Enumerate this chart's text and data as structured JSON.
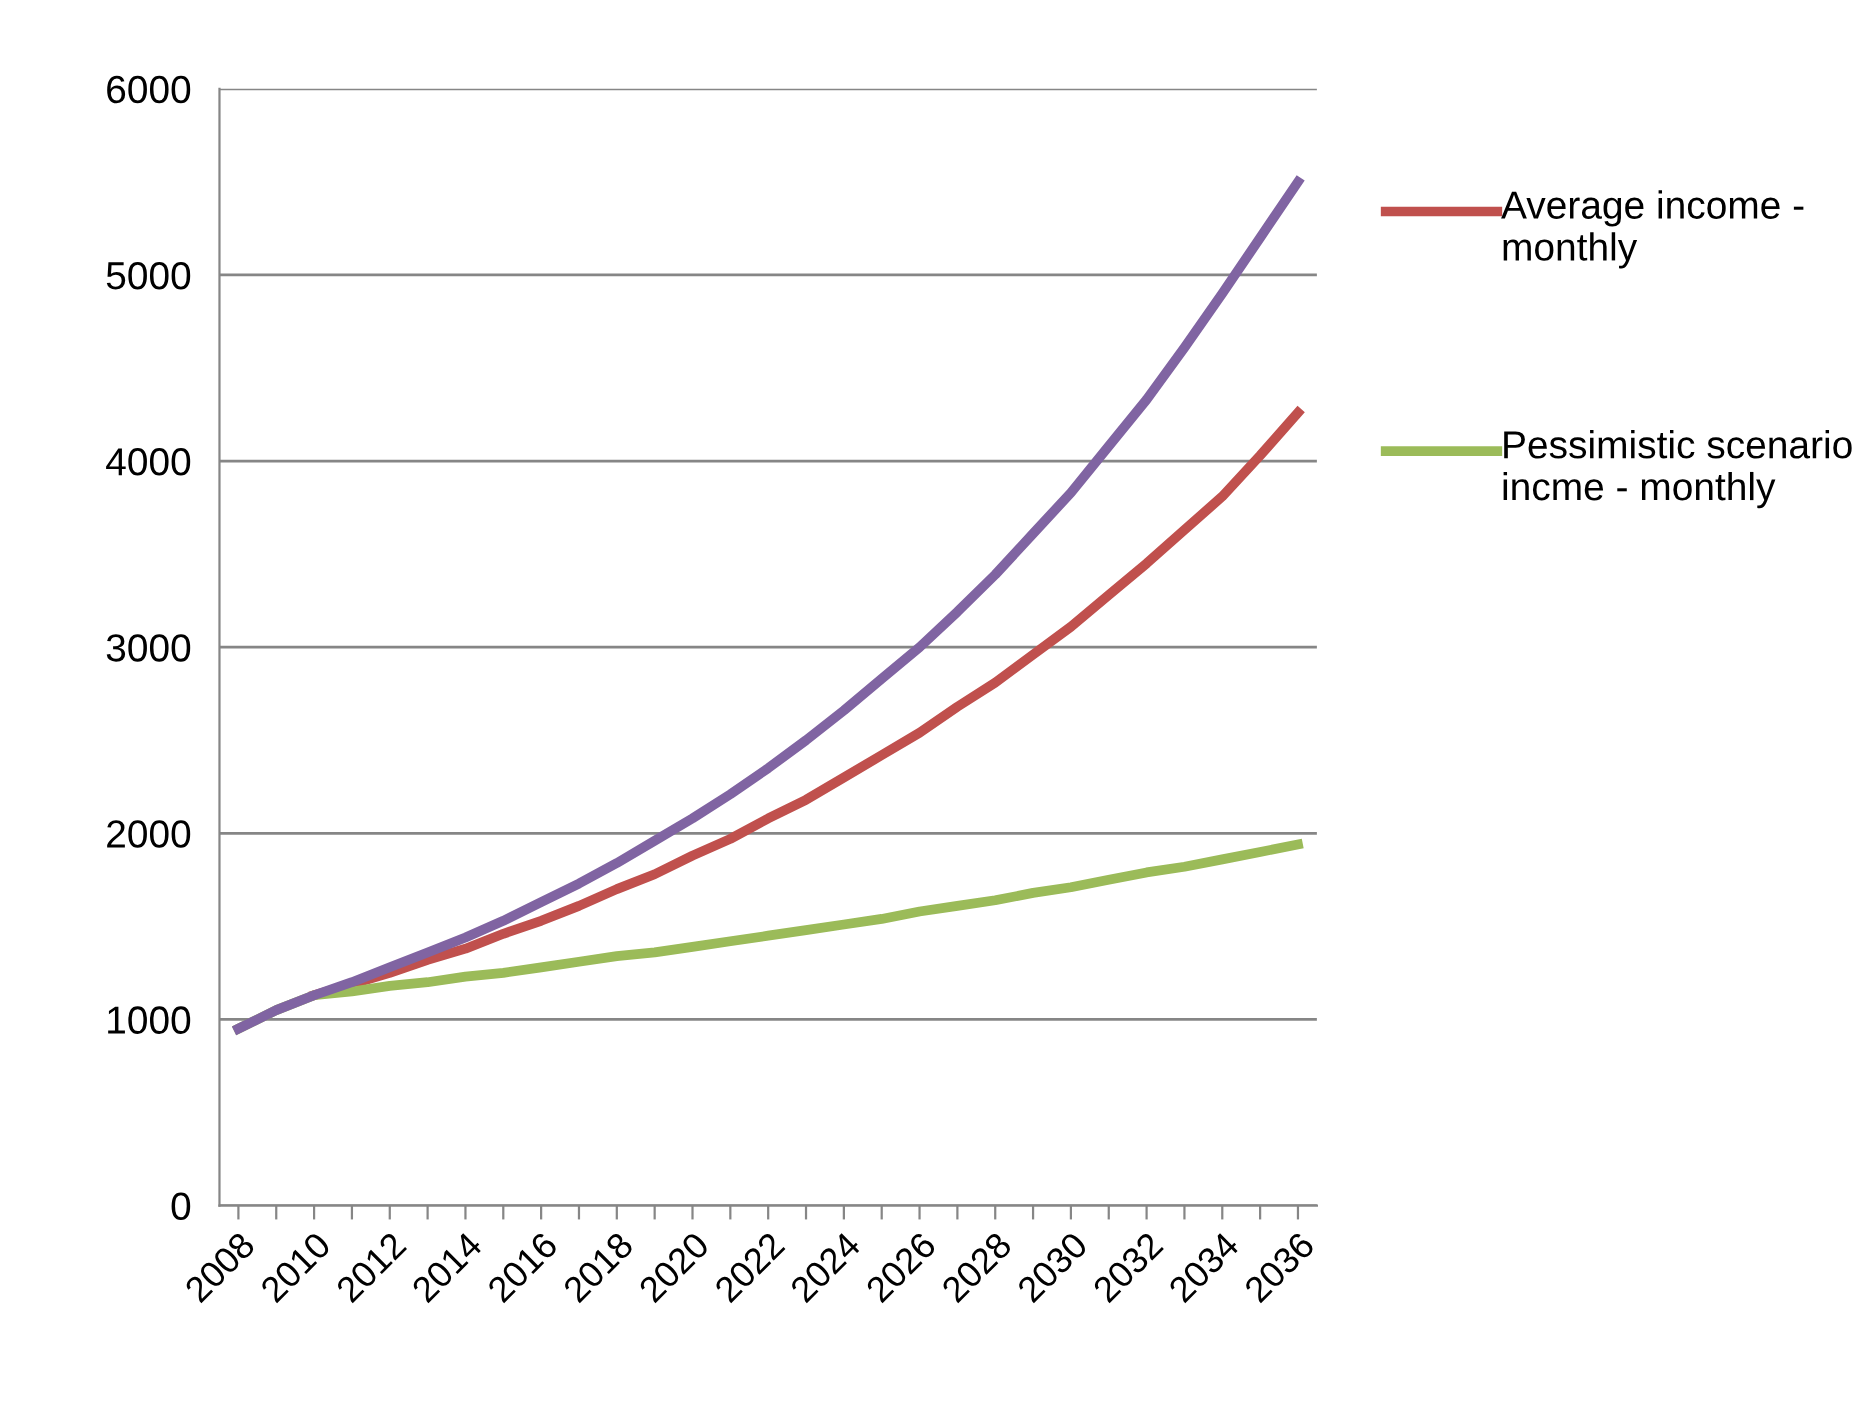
{
  "chart_data": {
    "type": "line",
    "categories": [
      "2008",
      null,
      "2010",
      null,
      "2012",
      null,
      "2014",
      null,
      "2016",
      null,
      "2018",
      null,
      "2020",
      null,
      "2022",
      null,
      "2024",
      null,
      "2026",
      null,
      "2028",
      null,
      "2030",
      null,
      "2032",
      null,
      "2034",
      null,
      "2036"
    ],
    "series": [
      {
        "name": "Average income - monthly",
        "color": "#c0504d",
        "values": [
          null,
          null,
          1130,
          1190,
          1250,
          1320,
          1380,
          1460,
          1530,
          1610,
          1700,
          1780,
          1880,
          1970,
          2080,
          2180,
          2300,
          2420,
          2540,
          2680,
          2810,
          2960,
          3110,
          3280,
          3450,
          3630,
          3810,
          4030,
          4260
        ]
      },
      {
        "name": "Pessimistic scenario incme - monthly",
        "color": "#9bbb59",
        "values": [
          950,
          1050,
          1130,
          1150,
          1180,
          1200,
          1230,
          1250,
          1280,
          1310,
          1340,
          1360,
          1390,
          1420,
          1450,
          1480,
          1510,
          1540,
          1580,
          1610,
          1640,
          1680,
          1710,
          1750,
          1790,
          1820,
          1860,
          1900,
          1940
        ]
      },
      {
        "color": "#8064a2",
        "values": [
          950,
          1050,
          1130,
          1200,
          1280,
          1360,
          1440,
          1530,
          1630,
          1730,
          1840,
          1960,
          2080,
          2210,
          2350,
          2500,
          2660,
          2830,
          3000,
          3190,
          3390,
          3610,
          3830,
          4080,
          4330,
          4610,
          4900,
          5200,
          5500
        ]
      }
    ],
    "ylim": [
      0,
      6000
    ],
    "yticks": [
      0,
      1000,
      2000,
      3000,
      4000,
      5000,
      6000
    ],
    "grid": "y",
    "legend": "right",
    "marker": "none",
    "line_style": "solid"
  }
}
